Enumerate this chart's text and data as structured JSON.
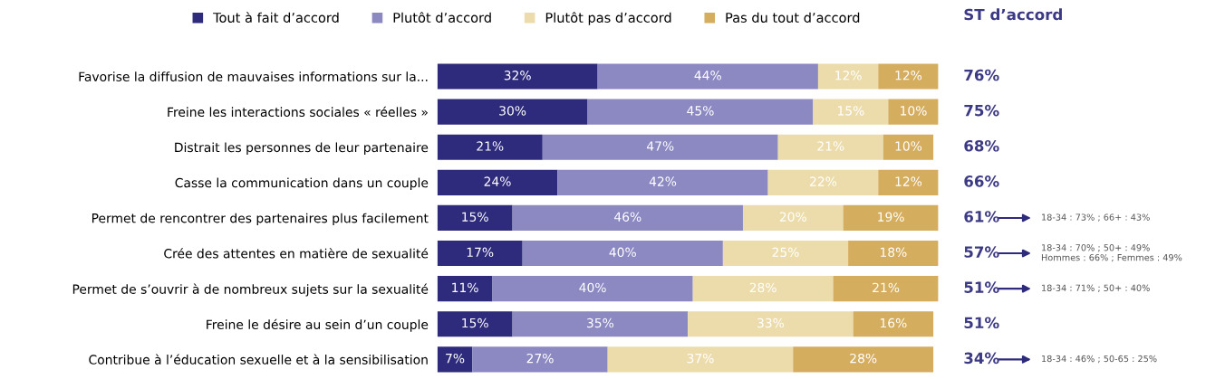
{
  "chart_data": {
    "type": "bar",
    "orientation": "horizontal",
    "stacked": true,
    "categories": [
      "Favorise la diffusion de mauvaises informations sur la...",
      "Freine les interactions sociales « réelles »",
      "Distrait les personnes de leur partenaire",
      "Casse la communication dans un couple",
      "Permet de rencontrer des partenaires plus facilement",
      "Crée des attentes en matière de sexualité",
      "Permet de s’ouvrir à de nombreux sujets sur la sexualité",
      "Freine le désire au sein d’un couple",
      "Contribue à l’éducation sexuelle et à la sensibilisation"
    ],
    "series": [
      {
        "name": "Tout à fait d’accord",
        "color": "#2e2b7c",
        "values": [
          32,
          30,
          21,
          24,
          15,
          17,
          11,
          15,
          7
        ],
        "value_labels": [
          "32%",
          "30%",
          "21%",
          "24%",
          "15%",
          "17%",
          "11%",
          "15%",
          "7%"
        ]
      },
      {
        "name": "Plutôt d’accord",
        "color": "#8b88c2",
        "values": [
          44,
          45,
          47,
          42,
          46,
          40,
          40,
          35,
          27
        ],
        "value_labels": [
          "44%",
          "45%",
          "47%",
          "42%",
          "46%",
          "40%",
          "40%",
          "35%",
          "27%"
        ]
      },
      {
        "name": "Plutôt pas d’accord",
        "color": "#eddcab",
        "values": [
          12,
          15,
          21,
          22,
          20,
          25,
          28,
          33,
          37
        ],
        "value_labels": [
          "12%",
          "15%",
          "21%",
          "22%",
          "20%",
          "25%",
          "28%",
          "33%",
          "37%"
        ]
      },
      {
        "name": "Pas du tout d’accord",
        "color": "#d5ad5f",
        "values": [
          12,
          10,
          10,
          12,
          19,
          18,
          21,
          16,
          28
        ],
        "value_labels": [
          "12%",
          "10%",
          "10%",
          "12%",
          "19%",
          "18%",
          "21%",
          "16%",
          "28%"
        ]
      }
    ],
    "tick_labels": "y",
    "legend": "top",
    "annotations": [
      "ST d’accord",
      "76%",
      "75%",
      "68%",
      "66%",
      "61%",
      "57%",
      "51%",
      "51%",
      "34%",
      "18-34 : 73% ; 66+ : 43%",
      "18-34 : 70% ; 50+ : 49%\nHommes : 66% ; Femmes : 49%",
      "18-34 : 71% ; 50+ : 40%",
      "18-34 : 46% ; 50-65 : 25%"
    ]
  }
}
